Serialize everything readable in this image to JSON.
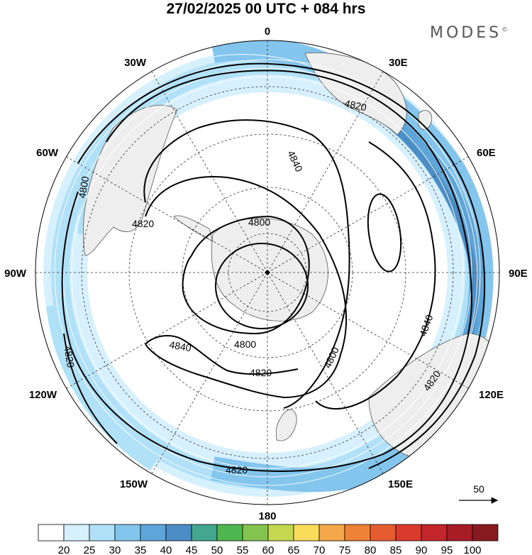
{
  "header": {
    "title": "27/02/2025  00 UTC  + 084 hrs",
    "brand": "MODES",
    "brand_mark": "©"
  },
  "map": {
    "projection": "south-polar-stereographic",
    "longitude_labels": {
      "top": "0",
      "top_right": "30E",
      "right_upper": "60E",
      "right": "90E",
      "right_lower": "120E",
      "bottom_right": "150E",
      "bottom": "180",
      "bottom_left": "150W",
      "left_lower": "120W",
      "left": "90W",
      "left_upper": "60W",
      "top_left": "30W"
    },
    "contour_labels": [
      "4820",
      "4840",
      "4800",
      "4820",
      "4800",
      "4800",
      "4820",
      "4840",
      "4800",
      "4820",
      "4840",
      "4820",
      "4820"
    ],
    "vector_reference_label": "50"
  },
  "colorbar": {
    "ticks": [
      "20",
      "25",
      "30",
      "35",
      "40",
      "45",
      "50",
      "55",
      "60",
      "65",
      "70",
      "75",
      "80",
      "85",
      "90",
      "95",
      "100"
    ],
    "colors": [
      "#ffffff",
      "#d6f1fd",
      "#b1e1f9",
      "#84c5ee",
      "#5ea6da",
      "#4b8dc4",
      "#44a690",
      "#4fb650",
      "#84c34f",
      "#c3d84f",
      "#f7dd5a",
      "#f4a84a",
      "#ee8237",
      "#e55c2f",
      "#d93a2b",
      "#c2262b",
      "#a71c25",
      "#861a20"
    ]
  }
}
